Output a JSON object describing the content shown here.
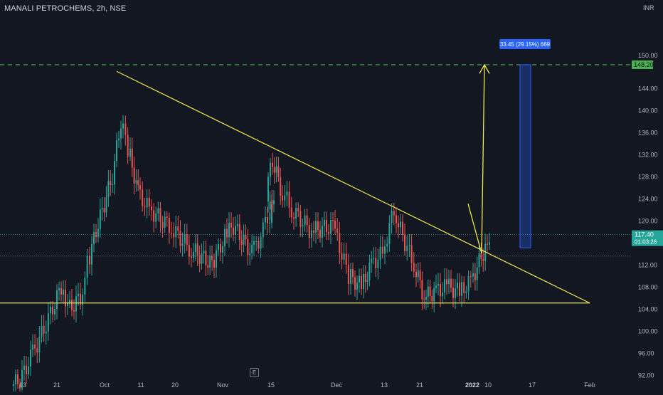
{
  "symbol_title": "MANALI PETROCHEMS, 2h, NSE",
  "currency": "INR",
  "events_badge": "E",
  "colors": {
    "background": "#131722",
    "up": "#26a69a",
    "down": "#ef5350",
    "trendline": "#f2e94e",
    "target_line": "#4caf50",
    "measure_box": "#2962ff",
    "last_price": "#26a69a",
    "text": "#b2b5be"
  },
  "price_scale": [
    "150.00",
    "148.20",
    "144.00",
    "140.00",
    "136.00",
    "132.00",
    "128.00",
    "124.00",
    "120.00",
    "117.40",
    "116.00",
    "112.00",
    "108.00",
    "104.00",
    "100.00",
    "96.00",
    "92.00"
  ],
  "time_scale": [
    "13",
    "21",
    "Oct",
    "11",
    "20",
    "Nov",
    "15",
    "Dec",
    "13",
    "21",
    "2022",
    "10",
    "17",
    "Feb"
  ],
  "target_label": "148.20",
  "last_price": {
    "value": "117.40",
    "countdown": "01:03:26"
  },
  "measure_label": "33.45 (29.15%) 669",
  "chart_data": {
    "type": "candlestick",
    "symbol": "MANALI PETROCHEMS",
    "interval": "2h",
    "exchange": "NSE",
    "y_range": [
      90,
      150
    ],
    "close_series": [
      {
        "date": "Sep 13",
        "close": 91
      },
      {
        "date": "Sep 15",
        "close": 95
      },
      {
        "date": "Sep 17",
        "close": 102
      },
      {
        "date": "Sep 20",
        "close": 108
      },
      {
        "date": "Sep 22",
        "close": 104
      },
      {
        "date": "Sep 24",
        "close": 106
      },
      {
        "date": "Sep 27",
        "close": 112
      },
      {
        "date": "Sep 29",
        "close": 118
      },
      {
        "date": "Oct 1",
        "close": 128
      },
      {
        "date": "Oct 4",
        "close": 138
      },
      {
        "date": "Oct 6",
        "close": 133
      },
      {
        "date": "Oct 8",
        "close": 125
      },
      {
        "date": "Oct 11",
        "close": 122
      },
      {
        "date": "Oct 14",
        "close": 119
      },
      {
        "date": "Oct 18",
        "close": 115
      },
      {
        "date": "Oct 20",
        "close": 112
      },
      {
        "date": "Oct 22",
        "close": 117
      },
      {
        "date": "Oct 26",
        "close": 119
      },
      {
        "date": "Oct 28",
        "close": 114
      },
      {
        "date": "Nov 1",
        "close": 118
      },
      {
        "date": "Nov 3",
        "close": 122
      },
      {
        "date": "Nov 9",
        "close": 124
      },
      {
        "date": "Nov 12",
        "close": 132
      },
      {
        "date": "Nov 15",
        "close": 126
      },
      {
        "date": "Nov 17",
        "close": 122
      },
      {
        "date": "Nov 22",
        "close": 118
      },
      {
        "date": "Nov 26",
        "close": 119
      },
      {
        "date": "Dec 1",
        "close": 110
      },
      {
        "date": "Dec 3",
        "close": 108
      },
      {
        "date": "Dec 7",
        "close": 112
      },
      {
        "date": "Dec 10",
        "close": 114
      },
      {
        "date": "Dec 13",
        "close": 122
      },
      {
        "date": "Dec 15",
        "close": 117
      },
      {
        "date": "Dec 17",
        "close": 112
      },
      {
        "date": "Dec 21",
        "close": 106
      },
      {
        "date": "Dec 23",
        "close": 107
      },
      {
        "date": "Dec 27",
        "close": 108
      },
      {
        "date": "Dec 29",
        "close": 107
      },
      {
        "date": "Jan 1",
        "close": 109
      },
      {
        "date": "Jan 3",
        "close": 115
      },
      {
        "date": "Jan 4",
        "close": 117.4
      }
    ],
    "drawings": {
      "descending_trendline": {
        "from": {
          "date": "Oct 4",
          "price": 147
        },
        "to": {
          "date": "Feb 1",
          "price": 105
        }
      },
      "support_line": {
        "price": 105
      },
      "target_line": {
        "price": 148.2
      },
      "measure": {
        "change": "33.45",
        "percent": "29.15%",
        "bars": "669"
      }
    }
  }
}
